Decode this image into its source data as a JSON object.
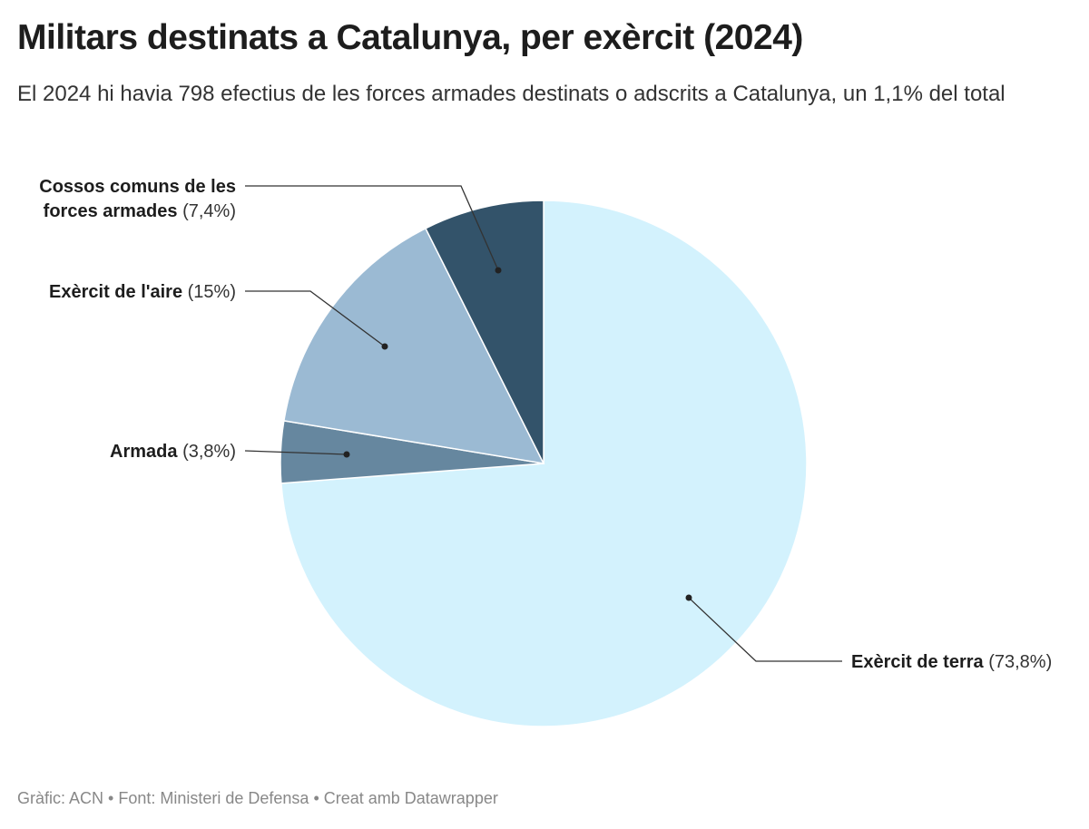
{
  "title": "Militars destinats a Catalunya, per exèrcit (2024)",
  "subtitle": "El 2024 hi havia 798 efectius de les forces armades destinats o adscrits a Catalunya, un 1,1% del total",
  "footer": {
    "graphic": "Gràfic: ACN",
    "source": "Font: Ministeri de Defensa",
    "credit": "Creat amb Datawrapper",
    "separator": " • "
  },
  "chart_data": {
    "type": "pie",
    "title": "Militars destinats a Catalunya, per exèrcit (2024)",
    "slices": [
      {
        "label": "Exèrcit de terra",
        "value": 73.8,
        "value_label": "(73,8%)",
        "color": "#d3f2fd"
      },
      {
        "label": "Armada",
        "value": 3.8,
        "value_label": "(3,8%)",
        "color": "#66879f"
      },
      {
        "label": "Exèrcit de l'aire",
        "value": 15,
        "value_label": "(15%)",
        "color": "#9bbad3"
      },
      {
        "label": "Cossos comuns de les forces armades",
        "label_lines": [
          "Cossos comuns de les",
          "forces armades"
        ],
        "value": 7.4,
        "value_label": "(7,4%)",
        "color": "#33536a"
      }
    ],
    "start": "top",
    "direction": "clockwise",
    "legend": "none"
  }
}
